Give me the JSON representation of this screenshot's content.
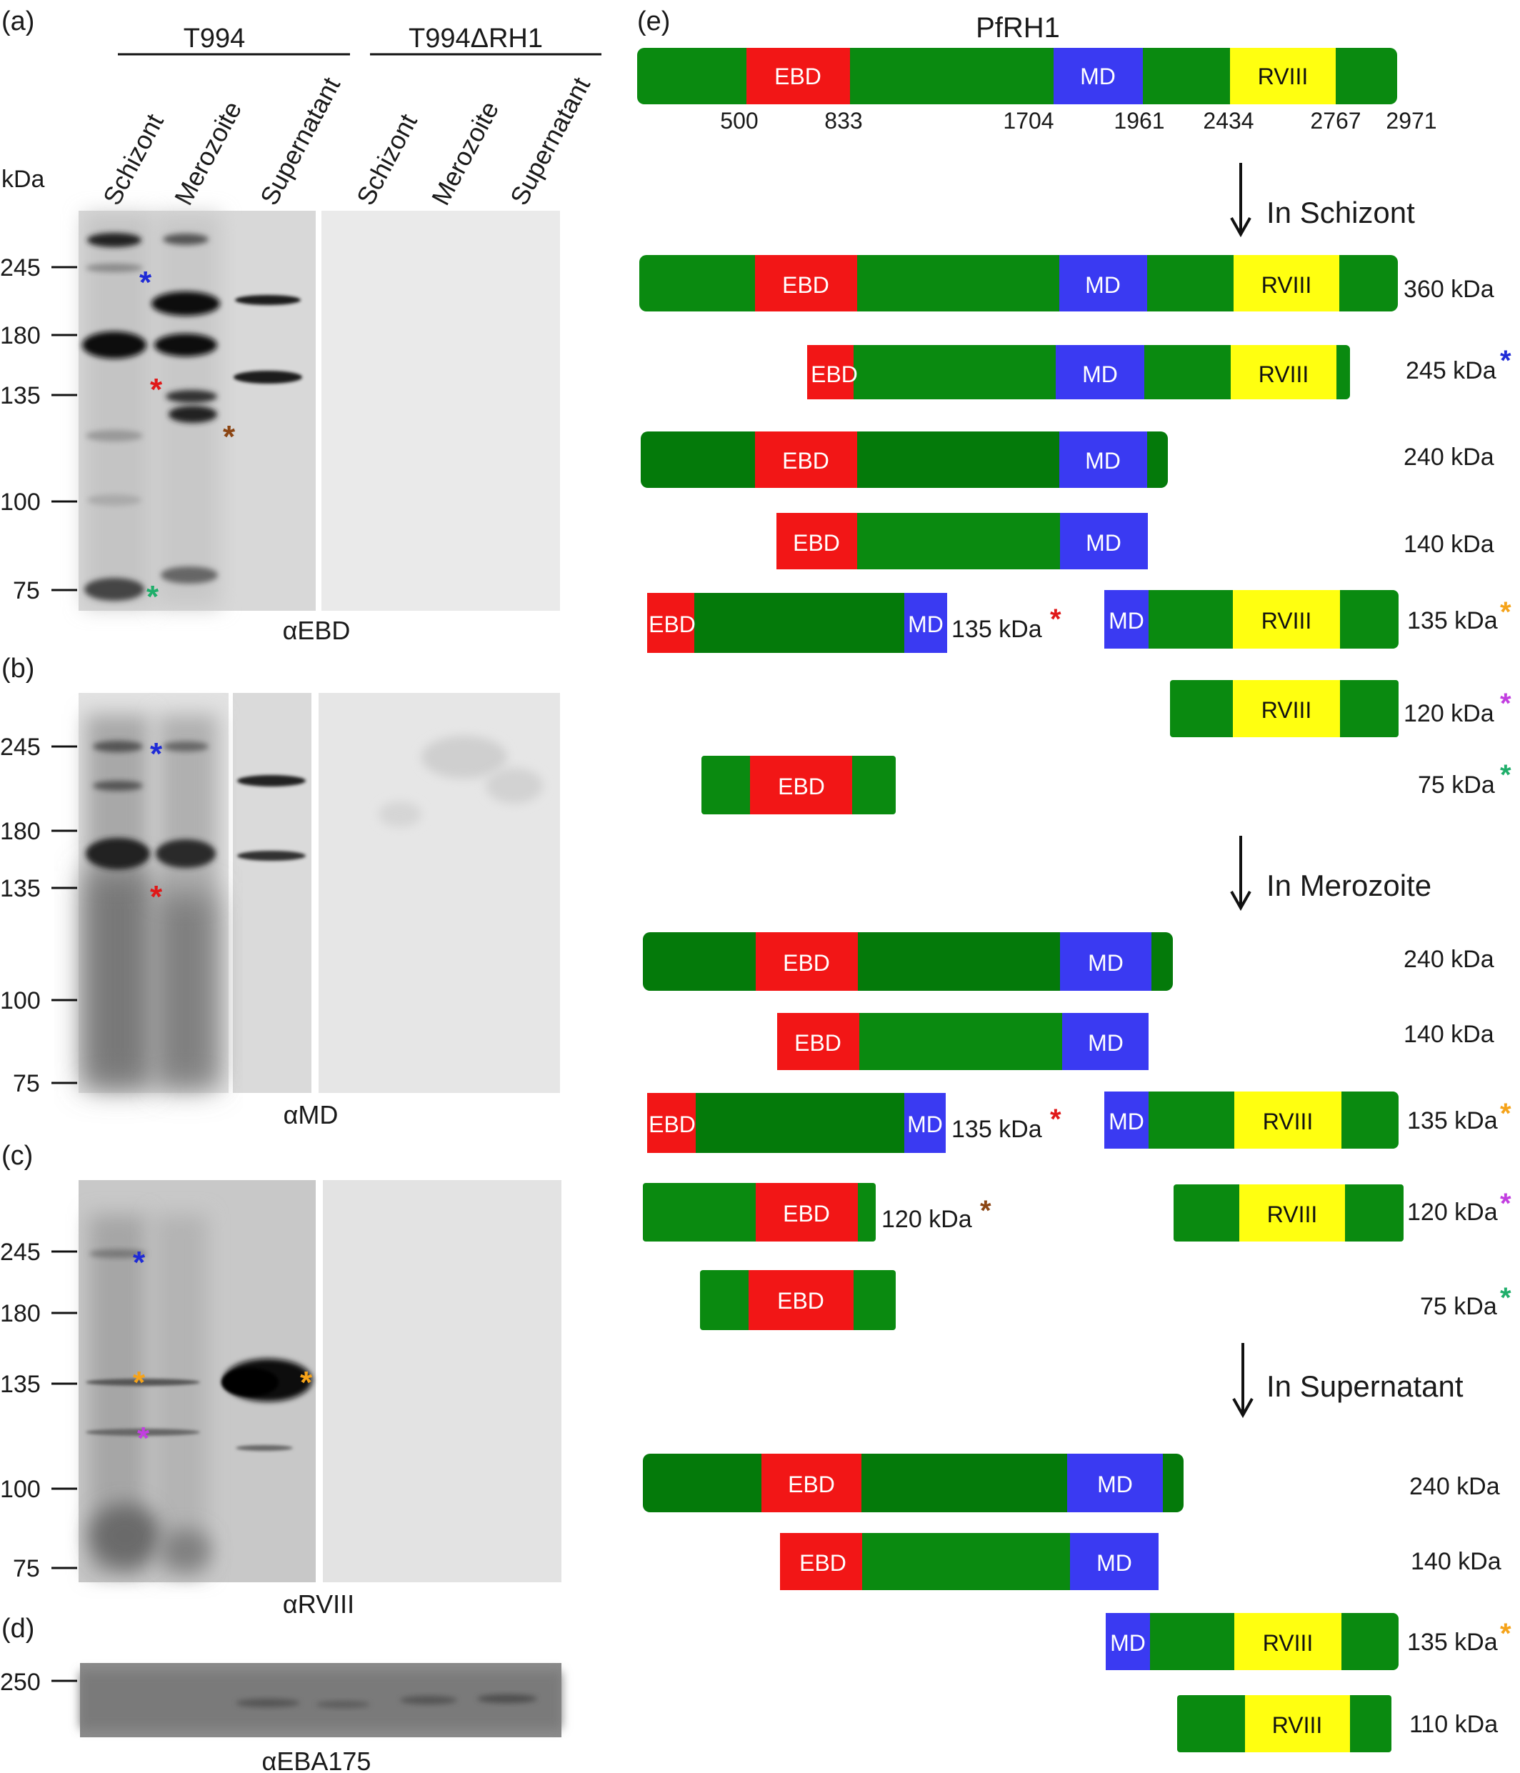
{
  "panel_labels": {
    "a": "(a)",
    "b": "(b)",
    "c": "(c)",
    "d": "(d)",
    "e": "(e)"
  },
  "strains": {
    "wt": "T994",
    "ko": "T994ΔRH1"
  },
  "lanes": [
    "Schizont",
    "Merozoite",
    "Supernatant",
    "Schizont",
    "Merozoite",
    "Supernatant"
  ],
  "kda_label": "kDa",
  "blots": {
    "a": {
      "antibody": "αEBD",
      "markers": [
        "245",
        "180",
        "135",
        "100",
        "75"
      ]
    },
    "b": {
      "antibody": "αMD",
      "markers": [
        "245",
        "180",
        "135",
        "100",
        "75"
      ]
    },
    "c": {
      "antibody": "αRVIII",
      "markers": [
        "245",
        "180",
        "135",
        "100",
        "75"
      ]
    },
    "d": {
      "antibody": "αEBA175",
      "markers": [
        "250"
      ]
    }
  },
  "star_colors": {
    "blue": "#1f2bd6",
    "red": "#e01818",
    "brown": "#8b4513",
    "green": "#1fae6a",
    "orange": "#f5a31a",
    "purple": "#c23ee0"
  },
  "domain_colors": {
    "backbone": "#0a8a10",
    "backbone_dark": "#047a0a",
    "EBD": "#f21616",
    "MD": "#3a3af2",
    "RVIII": "#ffff10"
  },
  "schematic": {
    "protein": "PfRH1",
    "domains": [
      "EBD",
      "MD",
      "RVIII"
    ],
    "positions": [
      "500",
      "833",
      "1704",
      "1961",
      "2434",
      "2767",
      "2971"
    ],
    "stages": {
      "schizont": "In Schizont",
      "merozoite": "In Merozoite",
      "supernatant": "In Supernatant"
    },
    "fragment_labels": {
      "schizont": [
        "360 kDa",
        "245 kDa",
        "240 kDa",
        "140 kDa",
        "135 kDa",
        "135 kDa",
        "120 kDa",
        "75 kDa"
      ],
      "merozoite": [
        "240 kDa",
        "140 kDa",
        "135 kDa",
        "135 kDa",
        "120 kDa",
        "120 kDa",
        "75 kDa"
      ],
      "supernatant": [
        "240 kDa",
        "140 kDa",
        "135 kDa",
        "110 kDa"
      ]
    }
  }
}
